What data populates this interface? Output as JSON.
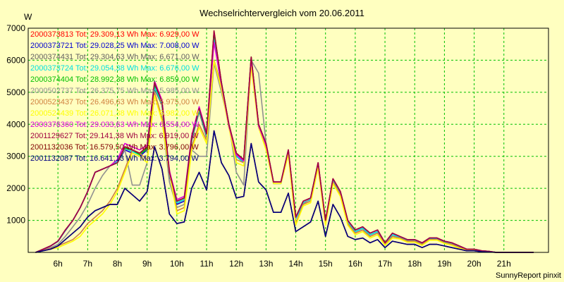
{
  "chart_data": {
    "type": "line",
    "title": "Wechselrichtervergleich vom 20.06.2011",
    "ylabel": "W",
    "ylim": [
      0,
      7000
    ],
    "xlim": [
      5.0,
      22.5
    ],
    "yticks": [
      "1000",
      "2000",
      "3000",
      "4000",
      "5000",
      "6000",
      "7000"
    ],
    "xticks": [
      {
        "label": "6h",
        "value": 6
      },
      {
        "label": "7h",
        "value": 7
      },
      {
        "label": "8h",
        "value": 8
      },
      {
        "label": "9h",
        "value": 9
      },
      {
        "label": "10h",
        "value": 10
      },
      {
        "label": "11h",
        "value": 11
      },
      {
        "label": "12h",
        "value": 12
      },
      {
        "label": "13h",
        "value": 13
      },
      {
        "label": "14h",
        "value": 14
      },
      {
        "label": "15h",
        "value": 15
      },
      {
        "label": "16h",
        "value": 16
      },
      {
        "label": "17h",
        "value": 17
      },
      {
        "label": "18h",
        "value": 18
      },
      {
        "label": "19h",
        "value": 19
      },
      {
        "label": "20h",
        "value": 20
      },
      {
        "label": "21h",
        "value": 21
      }
    ],
    "grid": true,
    "legend_position": "top-left",
    "x": [
      5.25,
      5.5,
      5.75,
      6.0,
      6.25,
      6.5,
      6.75,
      7.0,
      7.25,
      7.5,
      7.75,
      8.0,
      8.25,
      8.5,
      8.75,
      9.0,
      9.25,
      9.5,
      9.75,
      10.0,
      10.25,
      10.5,
      10.75,
      11.0,
      11.25,
      11.5,
      11.75,
      12.0,
      12.25,
      12.5,
      12.75,
      13.0,
      13.25,
      13.5,
      13.75,
      14.0,
      14.25,
      14.5,
      14.75,
      15.0,
      15.25,
      15.5,
      15.75,
      16.0,
      16.25,
      16.5,
      16.75,
      17.0,
      17.25,
      17.5,
      17.75,
      18.0,
      18.25,
      18.5,
      18.75,
      19.0,
      19.25,
      19.5,
      19.75,
      20.0,
      20.25,
      20.5,
      20.75,
      21.0,
      21.25,
      21.5,
      21.75,
      22.0
    ],
    "series": [
      {
        "label": "2000373813 Tot: 29.309,13 Wh Max: 6.929,00 W",
        "color": "#ff0000",
        "values": [
          0,
          100,
          200,
          350,
          700,
          1000,
          1400,
          1900,
          2500,
          2600,
          2700,
          2800,
          3300,
          3200,
          3100,
          3300,
          5300,
          4700,
          2500,
          1600,
          1700,
          3600,
          4500,
          3700,
          6900,
          5300,
          4000,
          3100,
          2900,
          6100,
          4000,
          3400,
          2200,
          2200,
          3200,
          1100,
          1600,
          1700,
          2800,
          1000,
          2300,
          1900,
          1000,
          700,
          800,
          600,
          700,
          300,
          600,
          500,
          400,
          400,
          300,
          450,
          450,
          350,
          300,
          200,
          100,
          100,
          50,
          30,
          0,
          0,
          0,
          0,
          0,
          0
        ]
      },
      {
        "label": "2000373721 Tot: 29.028,25 Wh Max: 7.008,00 W",
        "color": "#0000d0",
        "values": [
          0,
          90,
          200,
          340,
          680,
          1000,
          1400,
          1900,
          2500,
          2600,
          2700,
          2800,
          3200,
          3100,
          3000,
          3200,
          5200,
          4600,
          2400,
          1500,
          1600,
          3500,
          4400,
          3600,
          6850,
          5200,
          3900,
          3000,
          2800,
          6000,
          3900,
          3300,
          2150,
          2150,
          3150,
          1050,
          1550,
          1650,
          2750,
          950,
          2250,
          1850,
          950,
          650,
          750,
          550,
          650,
          280,
          550,
          480,
          380,
          380,
          280,
          430,
          430,
          330,
          280,
          180,
          90,
          90,
          45,
          25,
          0,
          0,
          0,
          0,
          0,
          0
        ]
      },
      {
        "label": "2000374431 Tot: 29.304,63 Wh Max: 6.671,00 W",
        "color": "#606060",
        "values": [
          0,
          100,
          200,
          350,
          700,
          1000,
          1400,
          1900,
          2500,
          2600,
          2700,
          2800,
          3300,
          3200,
          3100,
          3200,
          5100,
          4600,
          2450,
          1550,
          1650,
          3500,
          4400,
          3600,
          6650,
          5150,
          3900,
          3050,
          2850,
          5950,
          3950,
          3350,
          2200,
          2200,
          3150,
          1100,
          1600,
          1700,
          2750,
          1000,
          2250,
          1900,
          1000,
          700,
          800,
          600,
          700,
          300,
          600,
          500,
          400,
          400,
          300,
          450,
          450,
          350,
          300,
          200,
          100,
          100,
          50,
          30,
          0,
          0,
          0,
          0,
          0,
          0
        ]
      },
      {
        "label": "2000373724 Tot: 29.054,38 Wh Max: 6.676,00 W",
        "color": "#00e0e0",
        "values": [
          0,
          95,
          200,
          340,
          690,
          1000,
          1400,
          1900,
          2500,
          2600,
          2700,
          2850,
          3250,
          3150,
          3050,
          3250,
          5150,
          4650,
          2450,
          1550,
          1650,
          3550,
          4450,
          3650,
          6680,
          5200,
          3950,
          3000,
          2800,
          6000,
          3950,
          3350,
          2150,
          2150,
          3150,
          1050,
          1550,
          1650,
          2750,
          950,
          2250,
          1850,
          950,
          650,
          750,
          550,
          650,
          280,
          550,
          480,
          380,
          380,
          280,
          430,
          430,
          330,
          280,
          180,
          90,
          90,
          45,
          25,
          0,
          0,
          0,
          0,
          0,
          0
        ]
      },
      {
        "label": "2000374404 Tot: 28.992,38 Wh Max: 6.859,00 W",
        "color": "#00c000",
        "values": [
          0,
          100,
          200,
          350,
          700,
          1000,
          1400,
          1900,
          2500,
          2600,
          2700,
          2800,
          3250,
          3200,
          3050,
          3250,
          5250,
          4700,
          2500,
          1600,
          1700,
          3600,
          4500,
          3700,
          6860,
          5300,
          4000,
          3100,
          2900,
          6100,
          4000,
          3400,
          2200,
          2200,
          3200,
          1100,
          1600,
          1700,
          2800,
          1000,
          2300,
          1900,
          1000,
          700,
          800,
          600,
          700,
          300,
          600,
          500,
          400,
          400,
          300,
          450,
          450,
          350,
          300,
          200,
          100,
          100,
          50,
          30,
          0,
          0,
          0,
          0,
          0,
          0
        ]
      },
      {
        "label": "2000502737 Tot: 26.375,75 Wh Max: 5.985,00 W",
        "color": "#909090",
        "values": [
          0,
          80,
          150,
          250,
          500,
          800,
          1100,
          1500,
          2000,
          2400,
          2700,
          2900,
          3200,
          2100,
          2100,
          2800,
          5000,
          4200,
          2200,
          1400,
          1500,
          3200,
          3000,
          3000,
          5900,
          5000,
          4000,
          2500,
          2100,
          6000,
          5600,
          3400,
          2200,
          2200,
          3200,
          900,
          1500,
          1700,
          2700,
          900,
          2200,
          1800,
          900,
          600,
          700,
          500,
          600,
          250,
          500,
          450,
          350,
          350,
          250,
          400,
          400,
          300,
          250,
          150,
          80,
          80,
          40,
          20,
          0,
          0,
          0,
          0,
          0,
          0
        ]
      },
      {
        "label": "2000523437 Tot: 26.496,63 Wh Max: 5.975,00 W",
        "color": "#d08040",
        "values": [
          0,
          60,
          120,
          200,
          300,
          400,
          600,
          900,
          1100,
          1300,
          1600,
          2000,
          2600,
          3200,
          3100,
          2900,
          5000,
          4200,
          2600,
          1300,
          1400,
          3300,
          4000,
          3500,
          6000,
          5200,
          4000,
          2900,
          2800,
          5900,
          4000,
          3300,
          2200,
          2200,
          3100,
          900,
          1500,
          1600,
          2700,
          900,
          2200,
          1800,
          900,
          600,
          700,
          500,
          600,
          250,
          500,
          450,
          350,
          350,
          250,
          400,
          400,
          300,
          250,
          150,
          80,
          80,
          40,
          20,
          0,
          0,
          0,
          0,
          0,
          0
        ]
      },
      {
        "label": "2000524439 Tot: 26.071,38 Wh Max: 5.982,00 W",
        "color": "#ffff00",
        "values": [
          0,
          50,
          100,
          150,
          250,
          350,
          500,
          800,
          1000,
          1200,
          1500,
          1900,
          2500,
          3100,
          3000,
          2800,
          4900,
          4100,
          2500,
          1200,
          1300,
          3200,
          3900,
          3400,
          5980,
          5100,
          3900,
          2800,
          2700,
          5800,
          3900,
          3200,
          2150,
          2150,
          3050,
          850,
          1450,
          1550,
          2650,
          850,
          2150,
          1750,
          850,
          550,
          650,
          450,
          550,
          220,
          450,
          420,
          320,
          320,
          220,
          380,
          380,
          280,
          220,
          130,
          70,
          70,
          35,
          15,
          0,
          0,
          0,
          0,
          0,
          0
        ]
      },
      {
        "label": "2000376360 Tot: 29.033,63 Wh Max: 6.554,00 W",
        "color": "#e000e0",
        "values": [
          0,
          100,
          200,
          350,
          700,
          1000,
          1400,
          1900,
          2500,
          2600,
          2700,
          2900,
          3400,
          3300,
          3200,
          3350,
          5350,
          4750,
          2550,
          1650,
          1750,
          3650,
          4550,
          3750,
          6554,
          5250,
          3950,
          3050,
          2850,
          6050,
          3950,
          3350,
          2200,
          2200,
          3200,
          1100,
          1600,
          1700,
          2800,
          1000,
          2300,
          1900,
          1000,
          700,
          800,
          600,
          700,
          300,
          600,
          500,
          400,
          400,
          300,
          450,
          450,
          350,
          300,
          200,
          100,
          100,
          50,
          30,
          0,
          0,
          0,
          0,
          0,
          0
        ]
      },
      {
        "label": "2001129627 Tot: 29.141,38 Wh Max: 6.919,00 W",
        "color": "#a00040",
        "values": [
          0,
          100,
          200,
          350,
          700,
          1000,
          1400,
          1900,
          2500,
          2600,
          2700,
          2800,
          3300,
          3200,
          3100,
          3300,
          5300,
          4700,
          2500,
          1600,
          1700,
          3600,
          4500,
          3700,
          6919,
          5300,
          4000,
          3100,
          2900,
          6100,
          4000,
          3400,
          2200,
          2200,
          3200,
          1100,
          1600,
          1700,
          2800,
          1000,
          2300,
          1900,
          1000,
          700,
          800,
          600,
          700,
          300,
          600,
          500,
          400,
          400,
          300,
          450,
          450,
          350,
          300,
          200,
          100,
          100,
          50,
          30,
          0,
          0,
          0,
          0,
          0,
          0
        ]
      },
      {
        "label": "2001132036 Tot: 16.579,50 Wh Max: 3.796,00 W",
        "color": "#800000",
        "values": [
          0,
          50,
          100,
          200,
          400,
          600,
          800,
          1100,
          1300,
          1400,
          1500,
          1500,
          2000,
          1800,
          1600,
          1900,
          3300,
          2600,
          1200,
          900,
          950,
          2000,
          2500,
          1950,
          3796,
          2800,
          2400,
          1700,
          1750,
          3400,
          2200,
          1950,
          1250,
          1250,
          1850,
          650,
          800,
          950,
          1600,
          500,
          1500,
          1100,
          500,
          400,
          450,
          300,
          400,
          150,
          350,
          300,
          250,
          250,
          150,
          250,
          250,
          200,
          150,
          100,
          50,
          50,
          20,
          10,
          0,
          0,
          0,
          0,
          0,
          0
        ]
      },
      {
        "label": "2001132087 Tot: 16.641,13 Wh Max: 3.794,00 W",
        "color": "#000080",
        "values": [
          0,
          50,
          100,
          200,
          400,
          600,
          800,
          1100,
          1300,
          1400,
          1500,
          1500,
          2000,
          1800,
          1600,
          1900,
          3300,
          2600,
          1200,
          900,
          950,
          2000,
          2500,
          1950,
          3794,
          2800,
          2400,
          1700,
          1750,
          3400,
          2200,
          1950,
          1250,
          1250,
          1850,
          650,
          800,
          950,
          1600,
          500,
          1500,
          1100,
          500,
          400,
          450,
          300,
          400,
          150,
          350,
          300,
          250,
          250,
          150,
          250,
          250,
          200,
          150,
          100,
          50,
          50,
          20,
          10,
          0,
          0,
          0,
          0,
          0,
          0
        ]
      }
    ]
  },
  "footer": {
    "credit": "SunnyReport pinxit"
  }
}
